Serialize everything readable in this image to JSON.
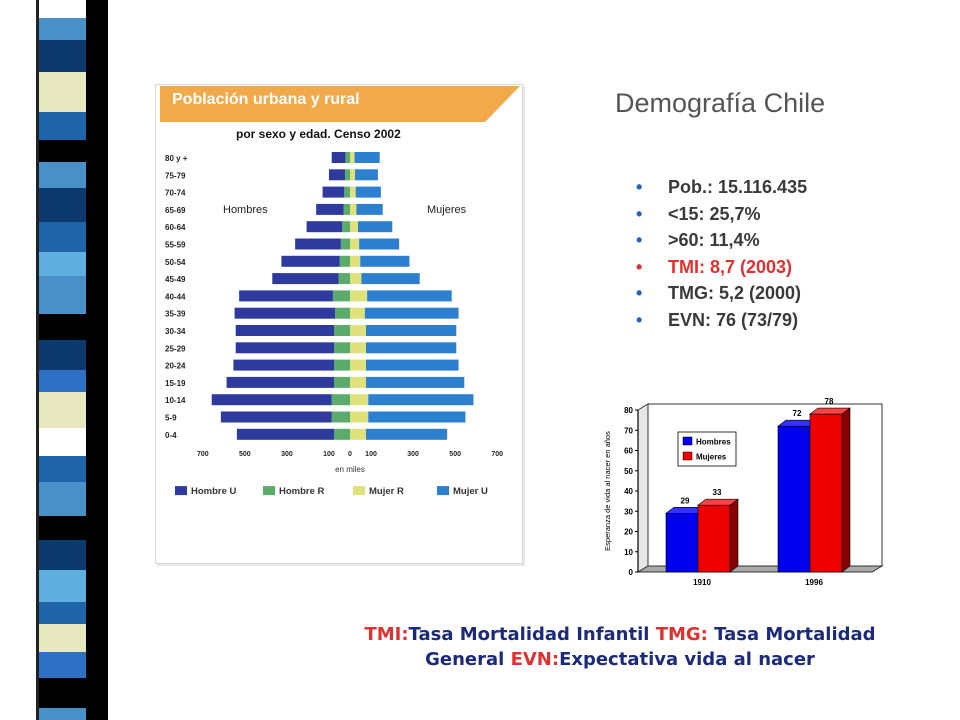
{
  "colors": {
    "stripe_palette": [
      "#ffffff",
      "#4a90c8",
      "#0d3a6e",
      "#e8e8c0",
      "#1f63a8",
      "#000000",
      "#5fb0e0",
      "#2e70c4"
    ],
    "hombre_u": "#2f3a9e",
    "hombre_r": "#5bab6c",
    "mujer_r": "#dfe27a",
    "mujer_u": "#2d7fcf",
    "banner": "#f2a94a",
    "bullet_dot": "#1f63c8",
    "bullet_red": "#e03030",
    "bar_blue": "#0000ee",
    "bar_red": "#ee0000",
    "footnote_blue": "#1b2a7a"
  },
  "slide": {
    "title": "Demografía Chile",
    "bullets": [
      {
        "text": "Pob.: 15.116.435",
        "highlight": false
      },
      {
        "text": "<15: 25,7%",
        "highlight": false
      },
      {
        "text": ">60: 11,4%",
        "highlight": false
      },
      {
        "text": "TMI:  8,7 (2003)",
        "highlight": true
      },
      {
        "text": "TMG: 5,2 (2000)",
        "highlight": false
      },
      {
        "text": "EVN:  76 (73/79)",
        "highlight": false
      }
    ],
    "bullet_symbol": "•",
    "footnote": {
      "tmi_abbr": "TMI:",
      "tmi_text": "Tasa Mortalidad Infantil ",
      "tmg_abbr": "TMG:",
      "tmg_text": " Tasa Mortalidad General ",
      "evn_abbr": "EVN:",
      "evn_text": "Expectativa vida al nacer"
    }
  },
  "chart_data": [
    {
      "type": "bar",
      "title": "Población urbana y rural",
      "subtitle": "por sexo y edad. Censo 2002",
      "left_label": "Hombres",
      "right_label": "Mujeres",
      "xlabel": "en miles",
      "x_ticks": [
        "700",
        "500",
        "300",
        "100",
        "0",
        "100",
        "300",
        "500",
        "700"
      ],
      "categories": [
        "80 y +",
        "75-79",
        "70-74",
        "65-69",
        "60-64",
        "55-59",
        "50-54",
        "45-49",
        "40-44",
        "35-39",
        "30-34",
        "25-29",
        "20-24",
        "15-19",
        "10-14",
        "5-9",
        "0-4"
      ],
      "series": [
        {
          "name": "Hombre U",
          "side": "left",
          "values": [
            60,
            70,
            95,
            120,
            155,
            200,
            255,
            290,
            410,
            440,
            430,
            430,
            440,
            470,
            525,
            485,
            425
          ]
        },
        {
          "name": "Hombre R",
          "side": "left",
          "values": [
            20,
            22,
            25,
            28,
            35,
            40,
            45,
            50,
            75,
            65,
            70,
            70,
            70,
            70,
            80,
            80,
            70
          ]
        },
        {
          "name": "Mujer R",
          "side": "right",
          "values": [
            20,
            22,
            25,
            28,
            35,
            40,
            45,
            50,
            75,
            65,
            70,
            70,
            70,
            70,
            80,
            80,
            70
          ]
        },
        {
          "name": "Mujer U",
          "side": "right",
          "values": [
            110,
            100,
            110,
            115,
            150,
            175,
            215,
            255,
            370,
            410,
            395,
            395,
            405,
            430,
            460,
            425,
            355
          ]
        }
      ],
      "xlim": [
        -700,
        700
      ]
    },
    {
      "type": "bar",
      "ylabel": "Esperanza de vida al nacer en años",
      "categories": [
        "1910",
        "1996"
      ],
      "series": [
        {
          "name": "Hombres",
          "values": [
            29,
            72
          ]
        },
        {
          "name": "Mujeres",
          "values": [
            33,
            78
          ]
        }
      ],
      "ylim": [
        0,
        80
      ],
      "y_ticks": [
        0,
        10,
        20,
        30,
        40,
        50,
        60,
        70,
        80
      ],
      "legend_position": "top-left"
    }
  ]
}
